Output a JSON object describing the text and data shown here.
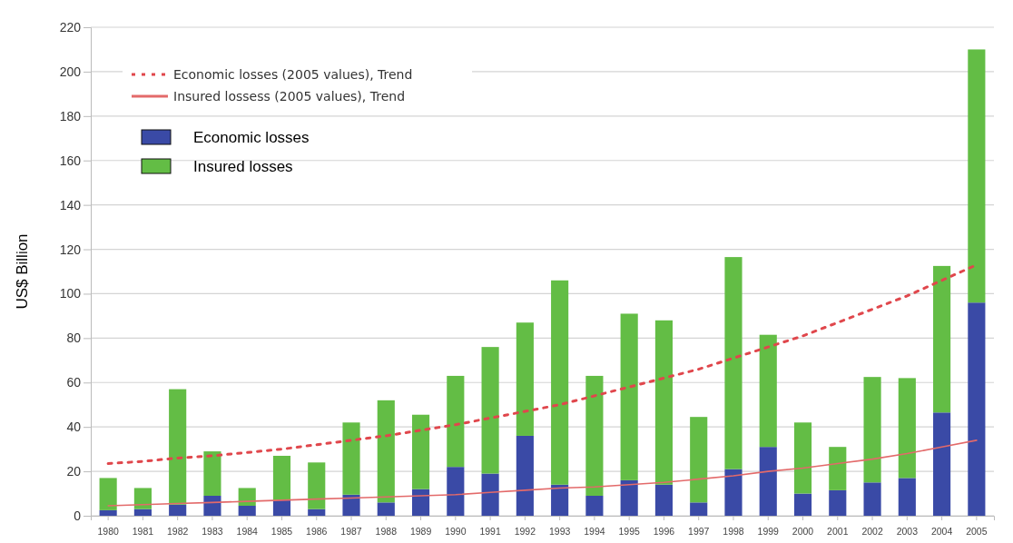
{
  "chart_data": {
    "type": "bar",
    "ylabel": "US$ Billion",
    "categories": [
      "1980",
      "1981",
      "1982",
      "1983",
      "1984",
      "1985",
      "1986",
      "1987",
      "1988",
      "1989",
      "1990",
      "1991",
      "1992",
      "1993",
      "1994",
      "1995",
      "1996",
      "1997",
      "1998",
      "1999",
      "2000",
      "2001",
      "2002",
      "2003",
      "2004",
      "2005"
    ],
    "stacked": true,
    "ylim": [
      0,
      220
    ],
    "yticks": [
      0,
      20,
      40,
      60,
      80,
      100,
      120,
      140,
      160,
      180,
      200,
      220
    ],
    "grid": "y",
    "legend": "top left",
    "series": [
      {
        "name": "Economic losses",
        "color": "#3a4aa6",
        "values": [
          2.5,
          3,
          5,
          9,
          4.5,
          7,
          3,
          9.5,
          6,
          12,
          22,
          19,
          36,
          14,
          9,
          16,
          14,
          6,
          21,
          31,
          10,
          11.5,
          15,
          17,
          46.5,
          96
        ]
      },
      {
        "name": "Insured losses",
        "color": "#63bd45",
        "values": [
          14.5,
          9.5,
          52,
          20,
          8,
          20,
          21,
          32.5,
          46,
          33.5,
          41,
          57,
          51,
          92,
          54,
          75,
          74,
          38.5,
          95.5,
          50.5,
          32,
          19.5,
          47.5,
          45,
          66,
          114
        ]
      },
      {
        "name": "Economic losses (2005 values), Trend",
        "type": "line",
        "color": "#e0474c",
        "line_style": "dotted",
        "values": [
          23.5,
          24.5,
          26,
          27,
          28.5,
          30,
          32,
          34,
          36,
          38.5,
          41,
          44,
          47,
          50,
          54,
          58,
          62,
          66,
          71,
          76,
          81,
          87,
          93,
          99,
          106,
          113
        ]
      },
      {
        "name": "Insured lossess (2005 values), Trend",
        "type": "line",
        "color": "#e36a6a",
        "line_style": "solid",
        "values": [
          4.5,
          5,
          5.5,
          6,
          6.5,
          7,
          7.5,
          8,
          8.5,
          9,
          9.5,
          10.5,
          11.5,
          12.5,
          13,
          14,
          15,
          16.5,
          18,
          20,
          21.5,
          23.5,
          25.5,
          28,
          31,
          34
        ]
      }
    ]
  }
}
